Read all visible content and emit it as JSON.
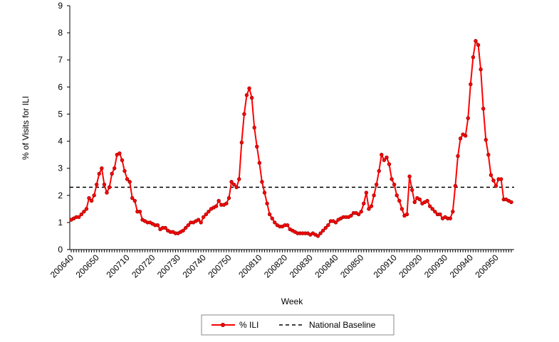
{
  "chart_data": {
    "type": "line",
    "ylabel": "% of Visits for ILI",
    "xlabel": "Week",
    "ylim": [
      0,
      9
    ],
    "yticks": [
      0,
      1,
      2,
      3,
      4,
      5,
      6,
      7,
      8,
      9
    ],
    "categories": [
      "200640",
      null,
      null,
      null,
      null,
      null,
      null,
      null,
      null,
      null,
      "200650",
      null,
      null,
      null,
      null,
      null,
      null,
      null,
      null,
      null,
      null,
      null,
      "200710",
      null,
      null,
      null,
      null,
      null,
      null,
      null,
      null,
      null,
      "200720",
      null,
      null,
      null,
      null,
      null,
      null,
      null,
      null,
      null,
      "200730",
      null,
      null,
      null,
      null,
      null,
      null,
      null,
      null,
      null,
      "200740",
      null,
      null,
      null,
      null,
      null,
      null,
      null,
      null,
      null,
      "200750",
      null,
      null,
      null,
      null,
      null,
      null,
      null,
      null,
      null,
      null,
      null,
      "200810",
      null,
      null,
      null,
      null,
      null,
      null,
      null,
      null,
      null,
      "200820",
      null,
      null,
      null,
      null,
      null,
      null,
      null,
      null,
      null,
      "200830",
      null,
      null,
      null,
      null,
      null,
      null,
      null,
      null,
      null,
      "200840",
      null,
      null,
      null,
      null,
      null,
      null,
      null,
      null,
      null,
      "200850",
      null,
      null,
      null,
      null,
      null,
      null,
      null,
      null,
      null,
      null,
      null,
      null,
      "200910",
      null,
      null,
      null,
      null,
      null,
      null,
      null,
      null,
      null,
      "200920",
      null,
      null,
      null,
      null,
      null,
      null,
      null,
      null,
      null,
      "200930",
      null,
      null,
      null,
      null,
      null,
      null,
      null,
      null,
      null,
      "200940",
      null,
      null,
      null,
      null,
      null,
      null,
      null,
      null,
      null,
      "200950",
      null,
      null,
      null,
      null,
      null,
      null
    ],
    "series": [
      {
        "name": "% ILI",
        "color": "#ff0000",
        "values": [
          1.1,
          1.15,
          1.2,
          1.2,
          1.3,
          1.4,
          1.5,
          1.9,
          1.8,
          2.0,
          2.4,
          2.8,
          3.0,
          2.4,
          2.1,
          2.3,
          2.8,
          3.0,
          3.5,
          3.55,
          3.3,
          2.9,
          2.6,
          2.5,
          1.9,
          1.8,
          1.4,
          1.4,
          1.1,
          1.05,
          1.0,
          1.0,
          0.95,
          0.9,
          0.9,
          0.75,
          0.8,
          0.8,
          0.7,
          0.65,
          0.65,
          0.6,
          0.6,
          0.65,
          0.7,
          0.8,
          0.9,
          1.0,
          1.0,
          1.05,
          1.1,
          1.0,
          1.2,
          1.3,
          1.4,
          1.5,
          1.55,
          1.6,
          1.8,
          1.65,
          1.65,
          1.7,
          1.9,
          2.5,
          2.4,
          2.3,
          2.6,
          3.95,
          5.0,
          5.7,
          5.95,
          5.6,
          4.5,
          3.8,
          3.2,
          2.5,
          2.1,
          1.7,
          1.3,
          1.15,
          1.0,
          0.9,
          0.85,
          0.85,
          0.9,
          0.9,
          0.75,
          0.7,
          0.65,
          0.6,
          0.6,
          0.6,
          0.6,
          0.6,
          0.55,
          0.6,
          0.55,
          0.5,
          0.6,
          0.7,
          0.8,
          0.9,
          1.05,
          1.05,
          1.0,
          1.1,
          1.15,
          1.2,
          1.2,
          1.2,
          1.25,
          1.35,
          1.35,
          1.3,
          1.4,
          1.7,
          2.1,
          1.5,
          1.6,
          2.0,
          2.4,
          2.9,
          3.5,
          3.3,
          3.4,
          3.15,
          2.6,
          2.4,
          2.0,
          1.8,
          1.5,
          1.25,
          1.3,
          2.7,
          2.2,
          1.75,
          1.9,
          1.85,
          1.7,
          1.75,
          1.8,
          1.6,
          1.5,
          1.4,
          1.3,
          1.3,
          1.15,
          1.2,
          1.15,
          1.15,
          1.4,
          2.35,
          3.45,
          4.1,
          4.25,
          4.2,
          4.85,
          6.1,
          7.1,
          7.7,
          7.55,
          6.65,
          5.2,
          4.05,
          3.5,
          2.75,
          2.55,
          2.35,
          2.6,
          2.6,
          1.85,
          1.85,
          1.8,
          1.75
        ]
      }
    ],
    "baseline": {
      "name": "National Baseline",
      "value": 2.3,
      "color": "#000000"
    }
  }
}
